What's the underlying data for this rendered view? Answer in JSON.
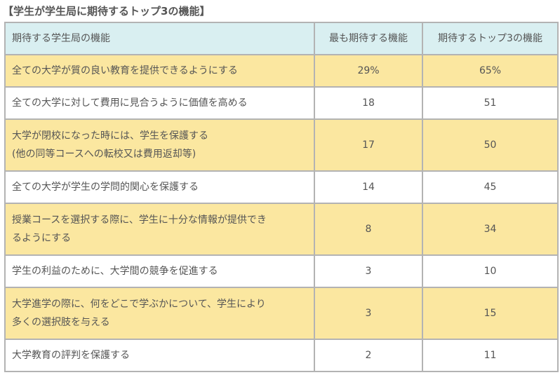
{
  "chart_data": {
    "type": "table",
    "title": "【学生が学生局に期待するトップ3の機能】",
    "columns": [
      "期待する学生局の機能",
      "最も期待する機能",
      "期待するトップ3の機能"
    ],
    "rows": [
      {
        "lines": [
          "全ての大学が質の良い教育を提供できるようにする"
        ],
        "most": "29%",
        "top3": "65%",
        "highlight": true
      },
      {
        "lines": [
          "全ての大学に対して費用に見合うように価値を高める"
        ],
        "most": "18",
        "top3": "51",
        "highlight": false
      },
      {
        "lines": [
          "大学が閉校になった時には、学生を保護する",
          "(他の同等コースへの転校又は費用返却等)"
        ],
        "most": "17",
        "top3": "50",
        "highlight": true
      },
      {
        "lines": [
          "全ての大学が学生の学問的関心を保護する"
        ],
        "most": "14",
        "top3": "45",
        "highlight": false
      },
      {
        "lines": [
          "授業コースを選択する際に、学生に十分な情報が提供でき",
          "るようにする"
        ],
        "most": "8",
        "top3": "34",
        "highlight": true
      },
      {
        "lines": [
          "学生の利益のために、大学間の競争を促進する"
        ],
        "most": "3",
        "top3": "10",
        "highlight": false
      },
      {
        "lines": [
          "大学進学の際に、何をどこで学ぶかについて、学生により",
          "多くの選択肢を与える"
        ],
        "most": "3",
        "top3": "15",
        "highlight": true
      },
      {
        "lines": [
          "大学教育の評判を保護する"
        ],
        "most": "2",
        "top3": "11",
        "highlight": false
      }
    ]
  },
  "colors": {
    "header_bg": "#d9eff1",
    "highlight_bg": "#fbe7a0",
    "border": "#b3b3b3",
    "text": "#555555"
  }
}
